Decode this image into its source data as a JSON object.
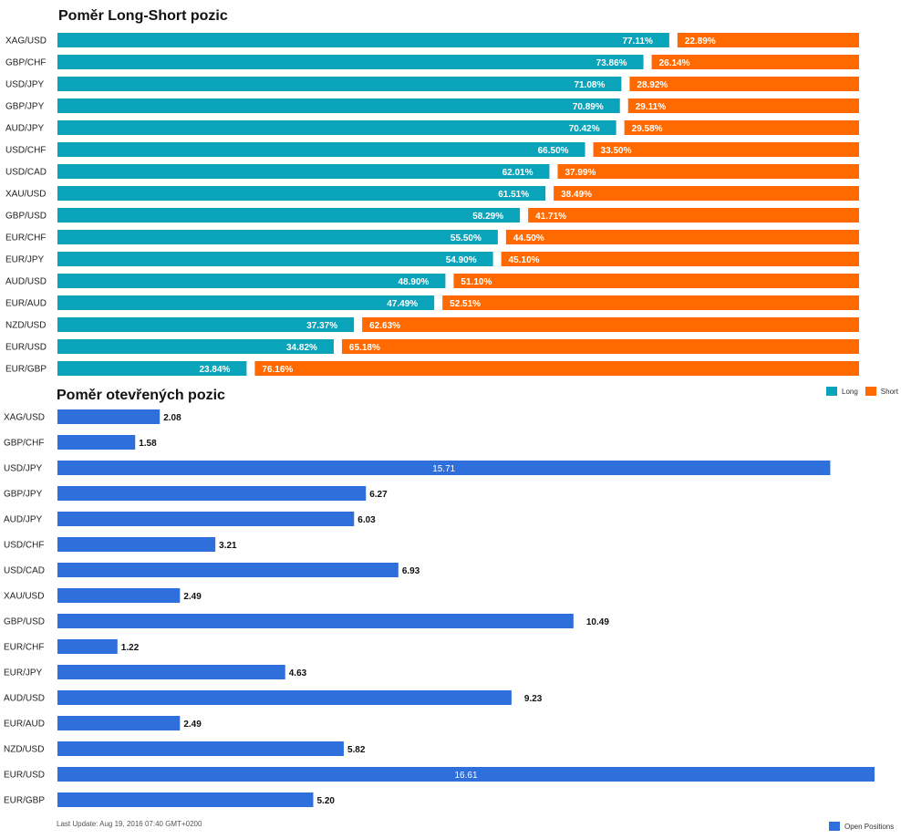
{
  "chart_data": [
    {
      "type": "bar",
      "stacked": true,
      "orientation": "horizontal",
      "title": "Poměr Long-Short pozic",
      "categories": [
        "XAG/USD",
        "GBP/CHF",
        "USD/JPY",
        "GBP/JPY",
        "AUD/JPY",
        "USD/CHF",
        "USD/CAD",
        "XAU/USD",
        "GBP/USD",
        "EUR/CHF",
        "EUR/JPY",
        "AUD/USD",
        "EUR/AUD",
        "NZD/USD",
        "EUR/USD",
        "EUR/GBP"
      ],
      "series": [
        {
          "name": "Long",
          "color": "#0aa4ba",
          "values": [
            77.11,
            73.86,
            71.08,
            70.89,
            70.42,
            66.5,
            62.01,
            61.51,
            58.29,
            55.5,
            54.9,
            48.9,
            47.49,
            37.37,
            34.82,
            23.84
          ],
          "labels": [
            "77.11%",
            "73.86%",
            "71.08%",
            "70.89%",
            "70.42%",
            "66.50%",
            "62.01%",
            "61.51%",
            "58.29%",
            "55.50%",
            "54.90%",
            "48.90%",
            "47.49%",
            "37.37%",
            "34.82%",
            "23.84%"
          ]
        },
        {
          "name": "Short",
          "color": "#ff6a00",
          "values": [
            22.89,
            26.14,
            28.92,
            29.11,
            29.58,
            33.5,
            37.99,
            38.49,
            41.71,
            44.5,
            45.1,
            51.1,
            52.51,
            62.63,
            65.18,
            76.16
          ],
          "labels": [
            "22.89%",
            "26.14%",
            "28.92%",
            "29.11%",
            "29.58%",
            "33.50%",
            "37.99%",
            "38.49%",
            "41.71%",
            "44.50%",
            "45.10%",
            "51.10%",
            "52.51%",
            "62.63%",
            "65.18%",
            "76.16%"
          ]
        }
      ],
      "xlim": [
        0,
        100
      ],
      "legend": "bottom-right"
    },
    {
      "type": "bar",
      "orientation": "horizontal",
      "title": "Poměr otevřených pozic",
      "categories": [
        "XAG/USD",
        "GBP/CHF",
        "USD/JPY",
        "GBP/JPY",
        "AUD/JPY",
        "USD/CHF",
        "USD/CAD",
        "XAU/USD",
        "GBP/USD",
        "EUR/CHF",
        "EUR/JPY",
        "AUD/USD",
        "EUR/AUD",
        "NZD/USD",
        "EUR/USD",
        "EUR/GBP"
      ],
      "series": [
        {
          "name": "Open Positions",
          "color": "#2f6fdc",
          "values": [
            2.08,
            1.58,
            15.71,
            6.27,
            6.03,
            3.21,
            6.93,
            2.49,
            10.49,
            1.22,
            4.63,
            9.23,
            2.49,
            5.82,
            16.61,
            5.2
          ],
          "labels": [
            "2.08",
            "1.58",
            "15.71",
            "6.27",
            "6.03",
            "3.21",
            "6.93",
            "2.49",
            "10.49",
            "1.22",
            "4.63",
            "9.23",
            "2.49",
            "5.82",
            "16.61",
            "5.20"
          ]
        }
      ],
      "xlim": [
        0,
        16.61
      ],
      "legend": "bottom-right"
    }
  ],
  "footer": {
    "text": "Last Update: Aug 19, 2016 07:40 GMT+0200"
  }
}
